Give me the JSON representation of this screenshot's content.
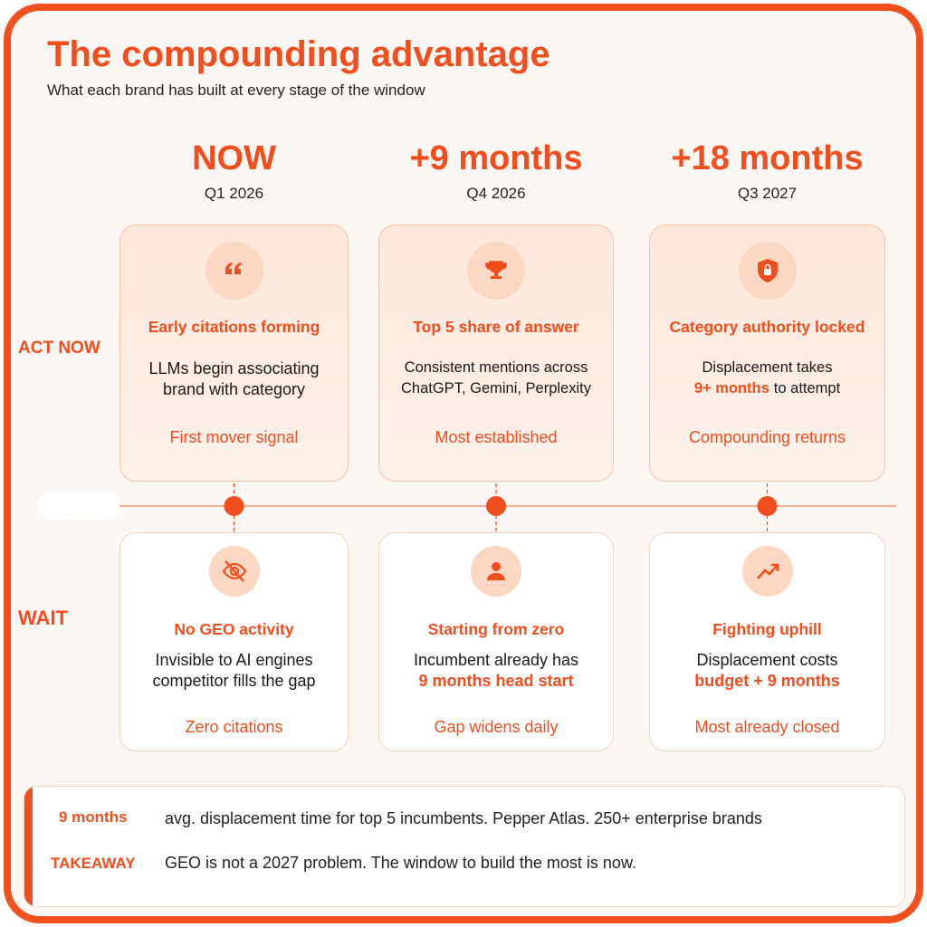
{
  "header": {
    "title": "The compounding advantage",
    "subtitle": "What each brand has built at every stage of the window"
  },
  "stages": [
    {
      "label": "NOW",
      "date": "Q1 2026"
    },
    {
      "label": "+9 months",
      "date": "Q4 2026"
    },
    {
      "label": "+18 months",
      "date": "Q3 2027"
    }
  ],
  "rows": [
    {
      "label": "ACT NOW",
      "cards": [
        {
          "title": "Early citations forming",
          "body": [
            [
              {
                "text": "LLMs begin associating"
              }
            ],
            [
              {
                "text": "brand with category"
              }
            ]
          ],
          "footer": "First mover signal"
        },
        {
          "title": "Top 5 share of answer",
          "body": [
            [
              {
                "text": "Consistent mentions across"
              }
            ],
            [
              {
                "text": "ChatGPT, Gemini, Perplexity"
              }
            ]
          ],
          "footer": "Most established"
        },
        {
          "title": "Category authority locked",
          "body": [
            [
              {
                "text": "Displacement takes"
              }
            ],
            [
              {
                "text": "9+ months",
                "accent": true
              },
              {
                "text": "to attempt"
              }
            ]
          ],
          "footer": "Compounding returns"
        }
      ]
    },
    {
      "label": "WAIT",
      "cards": [
        {
          "title": "No GEO activity",
          "body": [
            [
              {
                "text": "Invisible to AI engines"
              }
            ],
            [
              {
                "text": "competitor fills the gap"
              }
            ]
          ],
          "footer": "Zero citations"
        },
        {
          "title": "Starting from zero",
          "body": [
            [
              {
                "text": "Incumbent already has"
              }
            ],
            [
              {
                "text": "9 months head start",
                "accent": true
              }
            ]
          ],
          "footer": "Gap widens daily"
        },
        {
          "title": "Fighting uphill",
          "body": [
            [
              {
                "text": "Displacement costs"
              }
            ],
            [
              {
                "text": "budget + 9 months",
                "accent": true
              }
            ]
          ],
          "footer": "Most already closed"
        }
      ]
    }
  ],
  "footer": {
    "stat": {
      "label": "9 months",
      "text": "avg. displacement time for top 5 incumbents. Pepper Atlas. 250+ enterprise brands"
    },
    "takeaway": {
      "label": "TAKEAWAY",
      "text": "GEO is not a 2027 problem. The window to build the most is now."
    }
  }
}
